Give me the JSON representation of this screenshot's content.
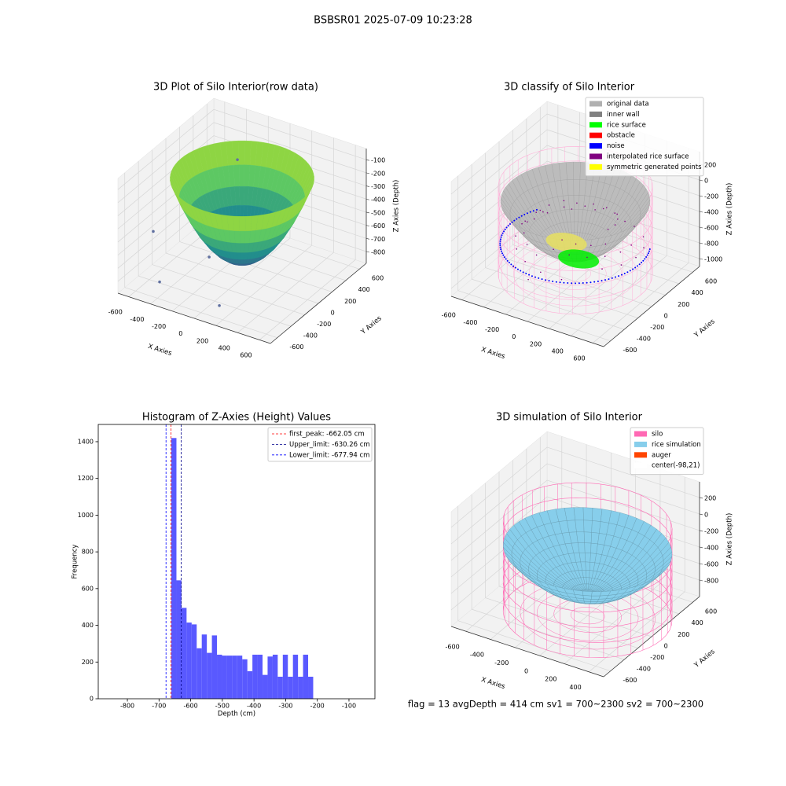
{
  "title": "BSBSR01 2025-07-09 10:23:28",
  "footer": "flag = 13   avgDepth = 414 cm  sv1 = 700~2300  sv2 = 700~2300",
  "chart_data": [
    {
      "type": "surface3d",
      "title": "3D Plot of Silo Interior(row data)",
      "xlabel": "X Axies",
      "ylabel": "Y Axies",
      "zlabel": "Z Axies (Depth)",
      "xlim": [
        -700,
        700
      ],
      "ylim": [
        -700,
        700
      ],
      "zlim": [
        -890,
        -15
      ],
      "xticks": [
        -600,
        -400,
        -200,
        0,
        200,
        400,
        600
      ],
      "yticks": [
        -600,
        -400,
        -200,
        0,
        200,
        400,
        600
      ],
      "zticks": [
        -100,
        -200,
        -300,
        -400,
        -500,
        -600,
        -700,
        -800
      ]
    },
    {
      "type": "classify3d",
      "title": "3D classify of Silo Interior",
      "xlabel": "X Axies",
      "ylabel": "Y Axies",
      "zlabel": "Z Axies (Depth)",
      "xlim": [
        -700,
        700
      ],
      "ylim": [
        -700,
        700
      ],
      "zlim": [
        -1100,
        360
      ],
      "xticks": [
        -600,
        -400,
        -200,
        0,
        200,
        400,
        600
      ],
      "yticks": [
        -600,
        -400,
        -200,
        0,
        200,
        400,
        600
      ],
      "zticks": [
        200,
        0,
        -200,
        -400,
        -600,
        -800,
        -1000
      ],
      "legend": [
        {
          "name": "original data",
          "color": "#b0b0b0"
        },
        {
          "name": "inner wall",
          "color": "#808080"
        },
        {
          "name": "rice surface",
          "color": "#00ff00"
        },
        {
          "name": "obstacle",
          "color": "#ff0000"
        },
        {
          "name": "noise",
          "color": "#0000ff"
        },
        {
          "name": "interpolated rice surface",
          "color": "#800080"
        },
        {
          "name": "symmetric generated points",
          "color": "#ffff00"
        }
      ]
    },
    {
      "type": "histogram",
      "title": "Histogram of Z-Axies (Height) Values",
      "xlabel": "Depth (cm)",
      "ylabel": "Frequency",
      "color": "#5050ff",
      "xlim": [
        -892,
        -18
      ],
      "ylim": [
        0,
        1494
      ],
      "xticks": [
        -800,
        -700,
        -600,
        -500,
        -400,
        -300,
        -200,
        -100
      ],
      "yticks": [
        0,
        200,
        400,
        600,
        800,
        1000,
        1200,
        1400
      ],
      "bins": [
        -661,
        -645,
        -629,
        -613,
        -597,
        -581,
        -565,
        -549,
        -533,
        -517,
        -501,
        -485,
        -469,
        -453,
        -437,
        -421,
        -405,
        -389,
        -373,
        -357,
        -341,
        -325,
        -309,
        -293,
        -277,
        -261,
        -245,
        -229,
        -213
      ],
      "values": [
        1420,
        645,
        495,
        415,
        405,
        275,
        350,
        250,
        345,
        240,
        235,
        235,
        235,
        235,
        215,
        150,
        240,
        240,
        130,
        230,
        240,
        120,
        240,
        120,
        240,
        120,
        240,
        120
      ],
      "lines": [
        {
          "name": "first_peak: -662.05 cm",
          "value": -662.05,
          "color": "#ff0000"
        },
        {
          "name": "Upper_limit: -630.26 cm",
          "value": -630.26,
          "color": "#00008b"
        },
        {
          "name": "Lower_limit: -677.94 cm",
          "value": -677.94,
          "color": "#0000ff"
        }
      ]
    },
    {
      "type": "simulation3d",
      "title": "3D simulation of Silo Interior",
      "xlabel": "X Axies",
      "ylabel": "Y Axies",
      "zlabel": "Z Axies (Depth)",
      "xlim": [
        -720,
        520
      ],
      "ylim": [
        -700,
        700
      ],
      "zlim": [
        -1000,
        390
      ],
      "xticks": [
        -600,
        -400,
        -200,
        0,
        200,
        400
      ],
      "yticks": [
        -600,
        -400,
        -200,
        0,
        200,
        400,
        600
      ],
      "zticks": [
        200,
        0,
        -200,
        -400,
        -600,
        -800
      ],
      "legend": [
        {
          "name": "silo",
          "color": "#ff69b4"
        },
        {
          "name": "rice simulation",
          "color": "#87ceeb"
        },
        {
          "name": "auger",
          "color": "#ff4500"
        },
        {
          "name": "center(-98,21)",
          "color": "#ffffff"
        }
      ]
    }
  ]
}
